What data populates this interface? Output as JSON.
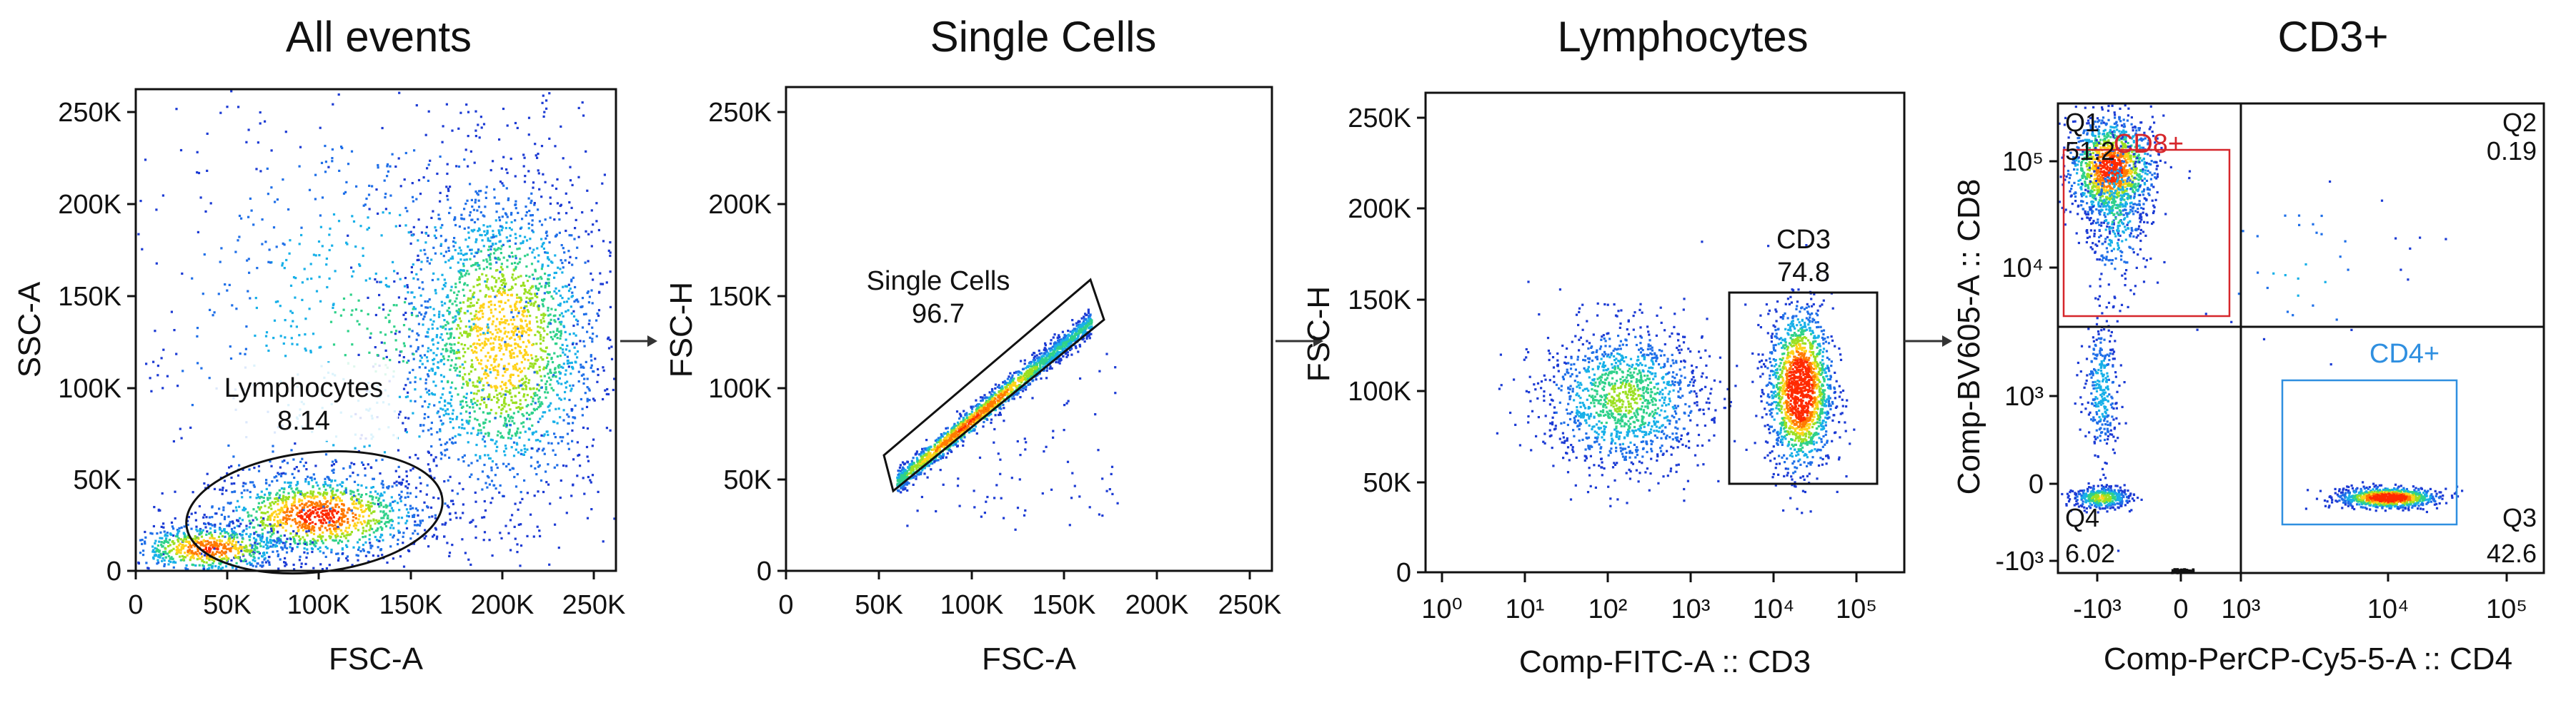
{
  "chart_data": [
    {
      "type": "scatter",
      "title": "All events",
      "xlabel": "FSC-A",
      "ylabel": "SSC-A",
      "xlim": [
        0,
        262144
      ],
      "ylim": [
        0,
        262144
      ],
      "xticks": [
        "0",
        "50K",
        "100K",
        "150K",
        "200K",
        "250K"
      ],
      "yticks": [
        "0",
        "50K",
        "100K",
        "150K",
        "200K",
        "250K"
      ],
      "gate": {
        "name": "Lymphocytes",
        "value": "8.14",
        "shape": "ellipse"
      },
      "populations": [
        {
          "cx": 100000,
          "cy": 30000,
          "sx": 30000,
          "sy": 12000,
          "n": 1200,
          "hot": 0.6
        },
        {
          "cx": 200000,
          "cy": 125000,
          "sx": 28000,
          "sy": 45000,
          "n": 2200,
          "hot": 0.4
        },
        {
          "cx": 40000,
          "cy": 12000,
          "sx": 22000,
          "sy": 7000,
          "n": 700,
          "hot": 0.55
        },
        {
          "cx": 130000,
          "cy": 130000,
          "sx": 70000,
          "sy": 70000,
          "n": 900,
          "hot": 0.05
        }
      ]
    },
    {
      "type": "scatter",
      "title": "Single Cells",
      "xlabel": "FSC-A",
      "ylabel": "FSC-H",
      "xlim": [
        0,
        262144
      ],
      "ylim": [
        0,
        262144
      ],
      "xticks": [
        "0",
        "50K",
        "100K",
        "150K",
        "200K",
        "250K"
      ],
      "yticks": [
        "0",
        "50K",
        "100K",
        "150K",
        "200K",
        "250K"
      ],
      "gate": {
        "name": "Single Cells",
        "value": "96.7",
        "shape": "polygon"
      },
      "diagonal": {
        "x0": 60000,
        "y0": 48000,
        "x1": 165000,
        "y1": 135000,
        "spread": 3500,
        "n": 1800
      }
    },
    {
      "type": "scatter",
      "title": "Lymphocytes",
      "xlabel": "Comp-FITC-A :: CD3",
      "ylabel": "FSC-H",
      "xlim": [
        0,
        5.3
      ],
      "ylim": [
        0,
        262144
      ],
      "xticks": [
        "10⁰",
        "10¹",
        "10²",
        "10³",
        "10⁴",
        "10⁵"
      ],
      "yticks": [
        "0",
        "50K",
        "100K",
        "150K",
        "200K",
        "250K"
      ],
      "gate": {
        "name": "CD3",
        "value": "74.8",
        "shape": "rectangle"
      },
      "populations": [
        {
          "cx": 2.2,
          "cy": 95000,
          "sx": 0.45,
          "sy": 20000,
          "n": 1300,
          "hot": 0.2
        },
        {
          "cx": 4.15,
          "cy": 100000,
          "sx": 0.18,
          "sy": 22000,
          "n": 1600,
          "hot": 0.85
        }
      ]
    },
    {
      "type": "scatter",
      "title": "CD3+",
      "xlabel": "Comp-PerCP-Cy5-5-A :: CD4",
      "ylabel": "Comp-BV605-A :: CD8",
      "xticks": [
        "-10³",
        "0",
        "10³",
        "10⁴",
        "10⁵"
      ],
      "yticks": [
        "-10³",
        "0",
        "10³",
        "10⁴",
        "10⁵"
      ],
      "quadrants": [
        {
          "name": "Q1",
          "value": "51.2"
        },
        {
          "name": "Q2",
          "value": "0.19"
        },
        {
          "name": "Q3",
          "value": "42.6"
        },
        {
          "name": "Q4",
          "value": "6.02"
        }
      ],
      "gates": [
        {
          "name": "CD8+",
          "color": "#d6262b"
        },
        {
          "name": "CD4+",
          "color": "#2f8fe0"
        }
      ]
    }
  ],
  "colors": {
    "sparse": "#1c3bd4",
    "dense": "#ff2a00",
    "arrow": "#333333"
  }
}
